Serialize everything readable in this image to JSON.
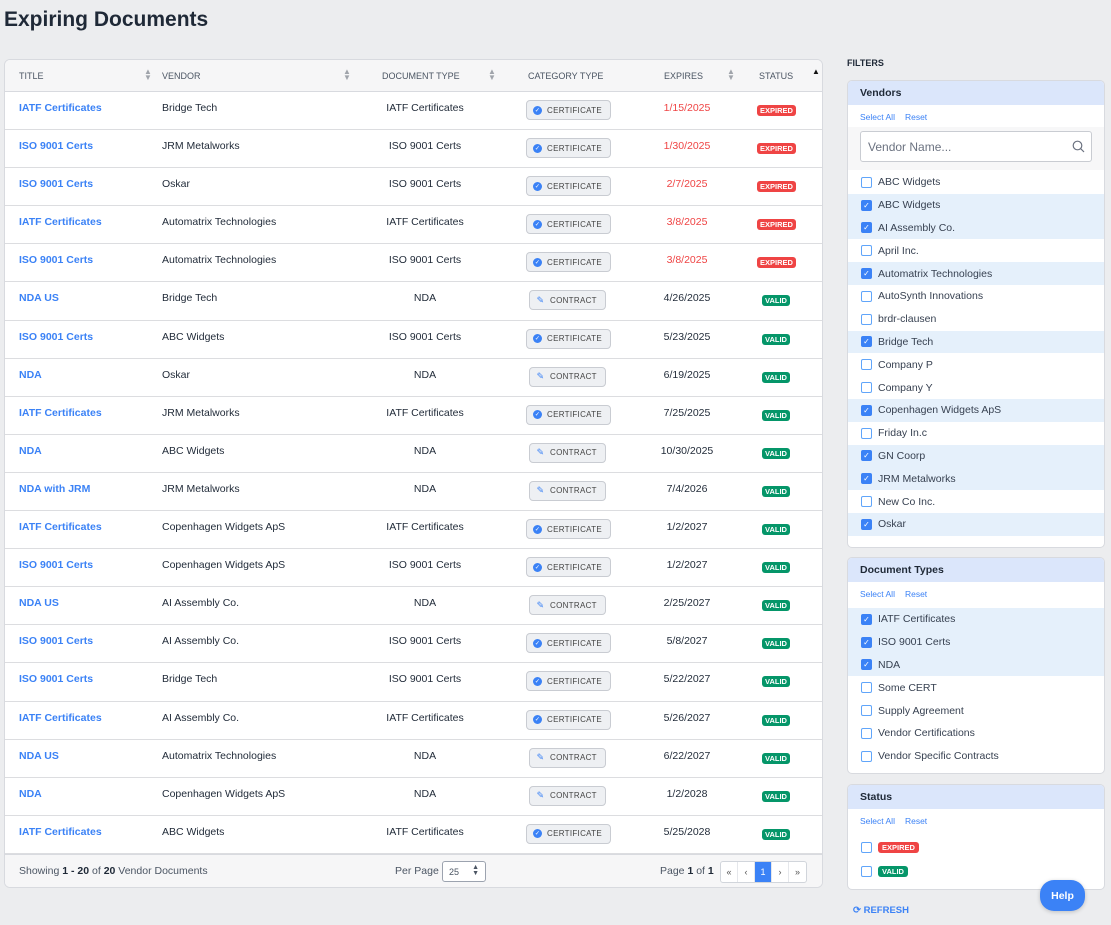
{
  "page_title": "Expiring Documents",
  "colors": {
    "link": "#3b82f6",
    "expired": "#ef4444",
    "valid": "#059669"
  },
  "table": {
    "headers": {
      "title": "TITLE",
      "vendor": "VENDOR",
      "doctype": "DOCUMENT TYPE",
      "category": "CATEGORY TYPE",
      "expires": "EXPIRES",
      "status": "STATUS"
    },
    "rows": [
      {
        "title": "IATF Certificates",
        "vendor": "Bridge Tech",
        "doctype": "IATF Certificates",
        "category": "CERTIFICATE",
        "expires": "1/15/2025",
        "status": "EXPIRED"
      },
      {
        "title": "ISO 9001 Certs",
        "vendor": "JRM Metalworks",
        "doctype": "ISO 9001 Certs",
        "category": "CERTIFICATE",
        "expires": "1/30/2025",
        "status": "EXPIRED"
      },
      {
        "title": "ISO 9001 Certs",
        "vendor": "Oskar",
        "doctype": "ISO 9001 Certs",
        "category": "CERTIFICATE",
        "expires": "2/7/2025",
        "status": "EXPIRED"
      },
      {
        "title": "IATF Certificates",
        "vendor": "Automatrix Technologies",
        "doctype": "IATF Certificates",
        "category": "CERTIFICATE",
        "expires": "3/8/2025",
        "status": "EXPIRED"
      },
      {
        "title": "ISO 9001 Certs",
        "vendor": "Automatrix Technologies",
        "doctype": "ISO 9001 Certs",
        "category": "CERTIFICATE",
        "expires": "3/8/2025",
        "status": "EXPIRED"
      },
      {
        "title": "NDA US",
        "vendor": "Bridge Tech",
        "doctype": "NDA",
        "category": "CONTRACT",
        "expires": "4/26/2025",
        "status": "VALID"
      },
      {
        "title": "ISO 9001 Certs",
        "vendor": "ABC Widgets",
        "doctype": "ISO 9001 Certs",
        "category": "CERTIFICATE",
        "expires": "5/23/2025",
        "status": "VALID"
      },
      {
        "title": "NDA",
        "vendor": "Oskar",
        "doctype": "NDA",
        "category": "CONTRACT",
        "expires": "6/19/2025",
        "status": "VALID"
      },
      {
        "title": "IATF Certificates",
        "vendor": "JRM Metalworks",
        "doctype": "IATF Certificates",
        "category": "CERTIFICATE",
        "expires": "7/25/2025",
        "status": "VALID"
      },
      {
        "title": "NDA",
        "vendor": "ABC Widgets",
        "doctype": "NDA",
        "category": "CONTRACT",
        "expires": "10/30/2025",
        "status": "VALID"
      },
      {
        "title": "NDA with JRM",
        "vendor": "JRM Metalworks",
        "doctype": "NDA",
        "category": "CONTRACT",
        "expires": "7/4/2026",
        "status": "VALID"
      },
      {
        "title": "IATF Certificates",
        "vendor": "Copenhagen Widgets ApS",
        "doctype": "IATF Certificates",
        "category": "CERTIFICATE",
        "expires": "1/2/2027",
        "status": "VALID"
      },
      {
        "title": "ISO 9001 Certs",
        "vendor": "Copenhagen Widgets ApS",
        "doctype": "ISO 9001 Certs",
        "category": "CERTIFICATE",
        "expires": "1/2/2027",
        "status": "VALID"
      },
      {
        "title": "NDA US",
        "vendor": "AI Assembly Co.",
        "doctype": "NDA",
        "category": "CONTRACT",
        "expires": "2/25/2027",
        "status": "VALID"
      },
      {
        "title": "ISO 9001 Certs",
        "vendor": "AI Assembly Co.",
        "doctype": "ISO 9001 Certs",
        "category": "CERTIFICATE",
        "expires": "5/8/2027",
        "status": "VALID"
      },
      {
        "title": "ISO 9001 Certs",
        "vendor": "Bridge Tech",
        "doctype": "ISO 9001 Certs",
        "category": "CERTIFICATE",
        "expires": "5/22/2027",
        "status": "VALID"
      },
      {
        "title": "IATF Certificates",
        "vendor": "AI Assembly Co.",
        "doctype": "IATF Certificates",
        "category": "CERTIFICATE",
        "expires": "5/26/2027",
        "status": "VALID"
      },
      {
        "title": "NDA US",
        "vendor": "Automatrix Technologies",
        "doctype": "NDA",
        "category": "CONTRACT",
        "expires": "6/22/2027",
        "status": "VALID"
      },
      {
        "title": "NDA",
        "vendor": "Copenhagen Widgets ApS",
        "doctype": "NDA",
        "category": "CONTRACT",
        "expires": "1/2/2028",
        "status": "VALID"
      },
      {
        "title": "IATF Certificates",
        "vendor": "ABC Widgets",
        "doctype": "IATF Certificates",
        "category": "CERTIFICATE",
        "expires": "5/25/2028",
        "status": "VALID"
      }
    ]
  },
  "footer": {
    "showing_prefix": "Showing",
    "from": "1",
    "dash": "-",
    "to": "20",
    "of": "of",
    "total": "20",
    "suffix": "Vendor Documents",
    "per_page_label": "Per Page",
    "per_page_value": "25",
    "page_label": "Page",
    "page": "1",
    "page_of": "of",
    "page_total": "1",
    "first": "«",
    "prev": "‹",
    "current": "1",
    "next": "›",
    "last": "»"
  },
  "filters": {
    "label": "FILTERS",
    "select_all": "Select All",
    "reset": "Reset",
    "vendors": {
      "title": "Vendors",
      "placeholder": "Vendor Name...",
      "items": [
        {
          "label": "ABC Widgets",
          "checked": false
        },
        {
          "label": "ABC Widgets",
          "checked": true
        },
        {
          "label": "AI Assembly Co.",
          "checked": true
        },
        {
          "label": "April Inc.",
          "checked": false
        },
        {
          "label": "Automatrix Technologies",
          "checked": true
        },
        {
          "label": "AutoSynth Innovations",
          "checked": false
        },
        {
          "label": "brdr-clausen",
          "checked": false
        },
        {
          "label": "Bridge Tech",
          "checked": true
        },
        {
          "label": "Company P",
          "checked": false
        },
        {
          "label": "Company Y",
          "checked": false
        },
        {
          "label": "Copenhagen Widgets ApS",
          "checked": true
        },
        {
          "label": "Friday In.c",
          "checked": false
        },
        {
          "label": "GN Coorp",
          "checked": true
        },
        {
          "label": "JRM Metalworks",
          "checked": true
        },
        {
          "label": "New Co Inc.",
          "checked": false
        },
        {
          "label": "Oskar",
          "checked": true
        }
      ]
    },
    "doctypes": {
      "title": "Document Types",
      "items": [
        {
          "label": "IATF Certificates",
          "checked": true
        },
        {
          "label": "ISO 9001 Certs",
          "checked": true
        },
        {
          "label": "NDA",
          "checked": true
        },
        {
          "label": "Some CERT",
          "checked": false
        },
        {
          "label": "Supply Agreement",
          "checked": false
        },
        {
          "label": "Vendor Certifications",
          "checked": false
        },
        {
          "label": "Vendor Specific Contracts",
          "checked": false
        }
      ]
    },
    "status": {
      "title": "Status",
      "items": [
        {
          "label": "EXPIRED",
          "checked": false
        },
        {
          "label": "VALID",
          "checked": false
        }
      ]
    }
  },
  "refresh_label": "REFRESH",
  "help_label": "Help"
}
